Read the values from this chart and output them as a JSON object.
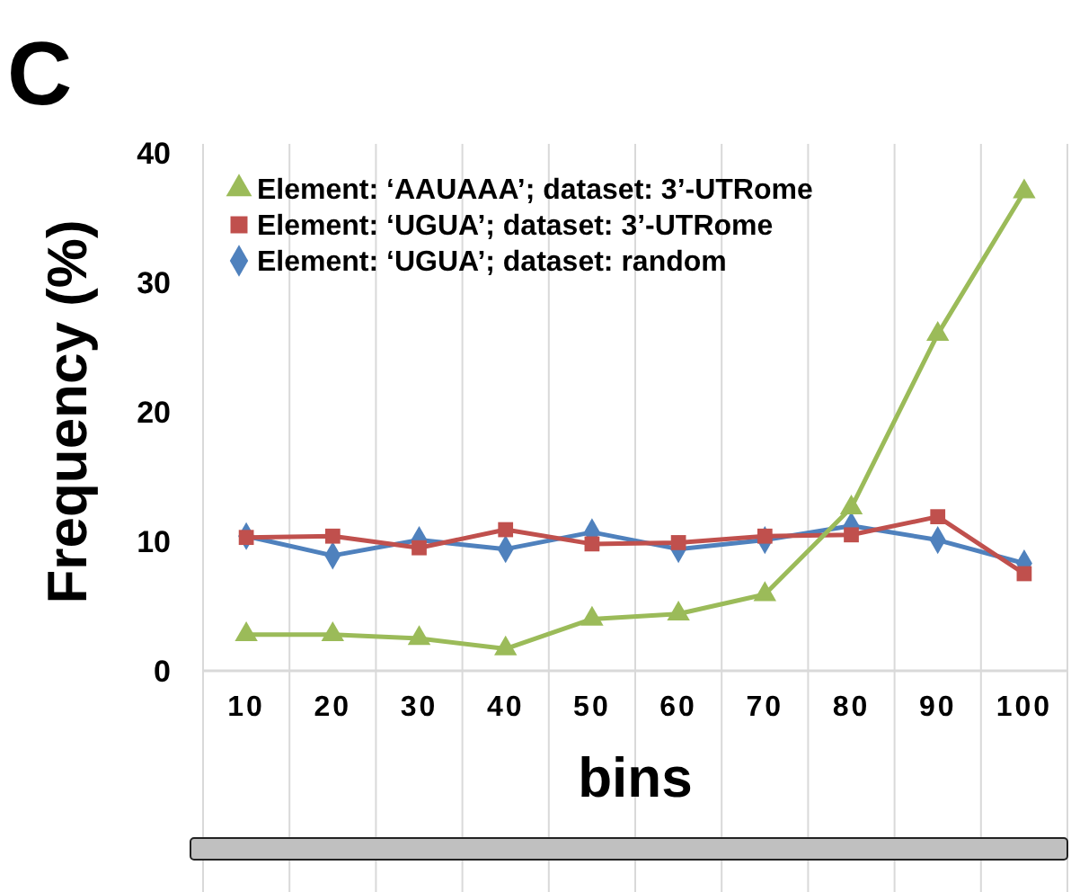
{
  "chart_data": {
    "type": "line",
    "xlabel": "bins",
    "ylabel": "Frequency (%)",
    "annotations": [
      "C"
    ],
    "categories": [
      "10",
      "20",
      "30",
      "40",
      "50",
      "60",
      "70",
      "80",
      "90",
      "100"
    ],
    "ylim": [
      0,
      40
    ],
    "yticks": [
      0,
      10,
      20,
      30,
      40
    ],
    "grid": "x",
    "legend": "top left",
    "line_style": "solid",
    "series": [
      {
        "name": "Element: ‘AAUAAA’; dataset: 3’-UTRome",
        "color": "#9bbb59",
        "marker": "triangle",
        "values": [
          2.8,
          2.8,
          2.5,
          1.7,
          4.0,
          4.4,
          5.9,
          12.6,
          26.0,
          37.0
        ]
      },
      {
        "name": "Element: ‘UGUA’; dataset: 3’-UTRome",
        "color": "#c0504d",
        "marker": "square",
        "values": [
          10.3,
          10.4,
          9.5,
          10.9,
          9.8,
          9.9,
          10.4,
          10.5,
          11.9,
          7.5
        ]
      },
      {
        "name": "Element: ‘UGUA’; dataset: random",
        "color": "#4f81bd",
        "marker": "diamond",
        "values": [
          10.4,
          8.9,
          10.1,
          9.4,
          10.7,
          9.4,
          10.1,
          11.2,
          10.1,
          8.3
        ]
      }
    ]
  }
}
